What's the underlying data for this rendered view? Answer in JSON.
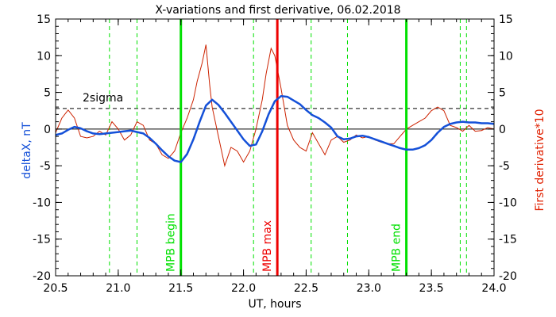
{
  "chart_data": {
    "type": "line",
    "title": "X-variations and first derivative, 06.02.2018",
    "xlabel": "UT, hours",
    "ylabel_left": "deltaX, nT",
    "ylabel_right": "First derivative*10",
    "xlim": [
      20.5,
      24.0
    ],
    "ylim_left": [
      -20,
      15
    ],
    "ylim_right": [
      -20,
      15
    ],
    "x_ticks": [
      "20.5",
      "21.0",
      "21.5",
      "22.0",
      "22.5",
      "23.0",
      "23.5",
      "24.0"
    ],
    "y_ticks": [
      "15",
      "10",
      "5",
      "0",
      "-5",
      "-10",
      "-15",
      "-20"
    ],
    "sigma_label": "2sigma",
    "sigma_level": 2.8,
    "colors": {
      "deltaX": "#1450d8",
      "derivative": "#cc2200",
      "green": "#00e000",
      "red": "#ee0000"
    },
    "vlines": [
      {
        "x": 21.5,
        "label": "MPB begin",
        "color": "#00e000"
      },
      {
        "x": 22.27,
        "label": "MPB max",
        "color": "#ee0000"
      },
      {
        "x": 23.3,
        "label": "MPB end",
        "color": "#00e000"
      }
    ],
    "dashed_vlines": [
      20.93,
      21.15,
      22.08,
      22.54,
      22.83,
      23.73,
      23.78
    ],
    "series": [
      {
        "axis": "left",
        "color": "#1450d8",
        "x": [
          20.5,
          20.55,
          20.6,
          20.65,
          20.7,
          20.75,
          20.8,
          20.85,
          20.9,
          20.95,
          21.0,
          21.05,
          21.1,
          21.15,
          21.2,
          21.25,
          21.3,
          21.35,
          21.4,
          21.45,
          21.5,
          21.55,
          21.6,
          21.65,
          21.7,
          21.75,
          21.8,
          21.85,
          21.9,
          21.95,
          22.0,
          22.05,
          22.1,
          22.15,
          22.2,
          22.25,
          22.3,
          22.35,
          22.4,
          22.45,
          22.5,
          22.55,
          22.6,
          22.65,
          22.7,
          22.75,
          22.8,
          22.85,
          22.9,
          22.95,
          23.0,
          23.05,
          23.1,
          23.15,
          23.2,
          23.25,
          23.3,
          23.35,
          23.4,
          23.45,
          23.5,
          23.55,
          23.6,
          23.65,
          23.7,
          23.75,
          23.8,
          23.85,
          23.9,
          23.95,
          24.0
        ],
        "y": [
          -0.8,
          -0.6,
          -0.1,
          0.3,
          0.1,
          -0.3,
          -0.6,
          -0.7,
          -0.6,
          -0.5,
          -0.4,
          -0.3,
          -0.2,
          -0.4,
          -0.6,
          -1.2,
          -2.0,
          -2.9,
          -3.7,
          -4.3,
          -4.5,
          -3.4,
          -1.4,
          1.0,
          3.2,
          4.0,
          3.3,
          2.2,
          1.0,
          -0.2,
          -1.4,
          -2.3,
          -2.1,
          -0.3,
          2.0,
          3.8,
          4.5,
          4.4,
          3.9,
          3.4,
          2.6,
          1.9,
          1.5,
          0.9,
          0.2,
          -1.0,
          -1.4,
          -1.3,
          -1.0,
          -0.9,
          -1.1,
          -1.4,
          -1.7,
          -2.0,
          -2.3,
          -2.6,
          -2.8,
          -2.8,
          -2.6,
          -2.2,
          -1.5,
          -0.5,
          0.3,
          0.7,
          0.9,
          1.0,
          0.9,
          0.9,
          0.8,
          0.8,
          0.7
        ]
      },
      {
        "axis": "right",
        "color": "#cc2200",
        "x": [
          20.5,
          20.55,
          20.6,
          20.65,
          20.7,
          20.75,
          20.8,
          20.85,
          20.9,
          20.95,
          21.0,
          21.05,
          21.1,
          21.15,
          21.2,
          21.25,
          21.3,
          21.35,
          21.4,
          21.45,
          21.5,
          21.55,
          21.6,
          21.63,
          21.67,
          21.7,
          21.73,
          21.75,
          21.8,
          21.85,
          21.9,
          21.95,
          22.0,
          22.05,
          22.1,
          22.15,
          22.18,
          22.22,
          22.25,
          22.3,
          22.35,
          22.4,
          22.45,
          22.5,
          22.55,
          22.6,
          22.65,
          22.7,
          22.75,
          22.8,
          22.85,
          22.9,
          22.95,
          23.0,
          23.05,
          23.1,
          23.15,
          23.2,
          23.25,
          23.3,
          23.35,
          23.4,
          23.45,
          23.5,
          23.55,
          23.6,
          23.65,
          23.7,
          23.75,
          23.8,
          23.85,
          23.9,
          23.95,
          24.0
        ],
        "y": [
          -0.5,
          1.5,
          2.6,
          1.5,
          -1.0,
          -1.2,
          -1.0,
          -0.3,
          -0.8,
          1.0,
          0.0,
          -1.5,
          -0.8,
          1.0,
          0.5,
          -1.5,
          -2.0,
          -3.5,
          -4.0,
          -3.0,
          -0.5,
          1.5,
          4.0,
          6.5,
          9.0,
          11.5,
          6.0,
          3.0,
          -1.0,
          -5.0,
          -2.5,
          -3.0,
          -4.5,
          -3.0,
          0.0,
          4.0,
          7.5,
          11.0,
          10.0,
          5.5,
          0.5,
          -1.5,
          -2.5,
          -3.0,
          -0.5,
          -2.0,
          -3.5,
          -1.5,
          -1.0,
          -1.8,
          -1.5,
          -0.8,
          -1.2,
          -1.0,
          -1.5,
          -1.8,
          -2.0,
          -2.0,
          -1.0,
          0.0,
          0.5,
          1.0,
          1.5,
          2.5,
          3.0,
          2.5,
          0.5,
          0.2,
          -0.3,
          0.5,
          -0.3,
          -0.2,
          0.2,
          0.0
        ]
      }
    ]
  }
}
